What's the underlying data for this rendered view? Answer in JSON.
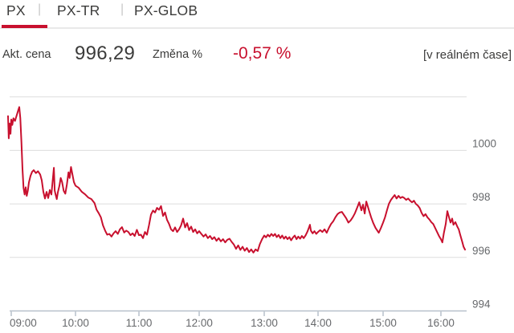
{
  "tabs": {
    "separator": "|",
    "items": [
      {
        "label": "PX",
        "active": true
      },
      {
        "label": "PX-TR",
        "active": false
      },
      {
        "label": "PX-GLOB",
        "active": false
      }
    ]
  },
  "quote": {
    "price_label": "Akt. cena",
    "price": "996,29",
    "change_label": "Změna %",
    "change": "-0,57 %",
    "realtime_note": "[v reálném čase]"
  },
  "colors": {
    "accent": "#c8102e",
    "text": "#3b3b3a",
    "axis_labels": "#67696c",
    "gridline": "#dddddd",
    "axis_line": "#b7c0ca"
  },
  "chart_data": {
    "type": "line",
    "title": "PX index intraday",
    "xlabel": "",
    "ylabel": "",
    "legend": "none",
    "grid": "horizontal",
    "x_axis": {
      "tick_labels": [
        "09:00",
        "10:00",
        "11:00",
        "12:00",
        "13:00",
        "14:00",
        "15:00",
        "16:00"
      ],
      "tick_minutes": [
        0,
        60,
        120,
        180,
        240,
        300,
        360,
        420
      ]
    },
    "y_axis": {
      "side": "right",
      "tick_labels": [
        "1000",
        "998",
        "996",
        "994"
      ],
      "tick_values": [
        1000,
        998,
        996,
        994
      ],
      "gridline_values": [
        1002,
        1000,
        998,
        996,
        994
      ],
      "ylim": [
        993.3,
        1002.8
      ]
    },
    "series": [
      {
        "name": "PX",
        "color": "#c8102e",
        "points": [
          [
            -3,
            1001.28
          ],
          [
            -2.3,
            1000.45
          ],
          [
            -1.5,
            1001.0
          ],
          [
            -0.7,
            1000.62
          ],
          [
            0,
            1001.15
          ],
          [
            1,
            1000.95
          ],
          [
            2,
            1001.2
          ],
          [
            3.5,
            1001.1
          ],
          [
            5,
            1001.3
          ],
          [
            6.5,
            1001.5
          ],
          [
            7.5,
            1001.62
          ],
          [
            8.5,
            1001.2
          ],
          [
            9.5,
            1000.3
          ],
          [
            10.5,
            999.3
          ],
          [
            11.5,
            998.6
          ],
          [
            12.5,
            998.35
          ],
          [
            13.5,
            998.62
          ],
          [
            14.5,
            998.3
          ],
          [
            15.5,
            998.5
          ],
          [
            16.5,
            998.8
          ],
          [
            18,
            999.05
          ],
          [
            19.5,
            999.2
          ],
          [
            21,
            999.26
          ],
          [
            23,
            999.15
          ],
          [
            25,
            999.22
          ],
          [
            27,
            999.1
          ],
          [
            28.5,
            998.88
          ],
          [
            30,
            998.45
          ],
          [
            31.5,
            998.2
          ],
          [
            33,
            998.45
          ],
          [
            34.5,
            998.22
          ],
          [
            36,
            998.52
          ],
          [
            37.5,
            998.35
          ],
          [
            39,
            999.0
          ],
          [
            39.8,
            999.35
          ],
          [
            40.6,
            998.5
          ],
          [
            41.5,
            998.34
          ],
          [
            42.5,
            998.18
          ],
          [
            43.5,
            998.43
          ],
          [
            45,
            998.68
          ],
          [
            46.2,
            998.97
          ],
          [
            47.5,
            998.82
          ],
          [
            49,
            998.49
          ],
          [
            50.5,
            998.38
          ],
          [
            52,
            998.73
          ],
          [
            53.5,
            999.18
          ],
          [
            54.5,
            998.97
          ],
          [
            55.8,
            999.38
          ],
          [
            57,
            999.13
          ],
          [
            58.5,
            998.82
          ],
          [
            60,
            998.68
          ],
          [
            63,
            998.6
          ],
          [
            66,
            998.45
          ],
          [
            69,
            998.36
          ],
          [
            72,
            998.24
          ],
          [
            75,
            998.18
          ],
          [
            78,
            998.03
          ],
          [
            80,
            997.78
          ],
          [
            82,
            997.65
          ],
          [
            84,
            997.5
          ],
          [
            86,
            997.2
          ],
          [
            88,
            997.0
          ],
          [
            90,
            996.85
          ],
          [
            92,
            996.88
          ],
          [
            94,
            996.78
          ],
          [
            96,
            996.9
          ],
          [
            98,
            996.98
          ],
          [
            100,
            996.88
          ],
          [
            102,
            997.05
          ],
          [
            104,
            997.13
          ],
          [
            106,
            996.93
          ],
          [
            108,
            997.0
          ],
          [
            110,
            996.95
          ],
          [
            112,
            996.83
          ],
          [
            114,
            996.9
          ],
          [
            116,
            996.8
          ],
          [
            118,
            997.03
          ],
          [
            120,
            996.83
          ],
          [
            122,
            996.85
          ],
          [
            124,
            996.72
          ],
          [
            126,
            996.95
          ],
          [
            128,
            996.85
          ],
          [
            130,
            997.2
          ],
          [
            132,
            997.6
          ],
          [
            134,
            997.75
          ],
          [
            136,
            997.68
          ],
          [
            138,
            997.85
          ],
          [
            140,
            997.78
          ],
          [
            142,
            997.92
          ],
          [
            144,
            997.55
          ],
          [
            146,
            997.68
          ],
          [
            148,
            997.4
          ],
          [
            150,
            997.25
          ],
          [
            152,
            997.05
          ],
          [
            154,
            996.98
          ],
          [
            156,
            997.12
          ],
          [
            158,
            996.95
          ],
          [
            160,
            997.05
          ],
          [
            162,
            997.2
          ],
          [
            164,
            997.45
          ],
          [
            166,
            997.12
          ],
          [
            168,
            997.28
          ],
          [
            170,
            997.02
          ],
          [
            172,
            997.15
          ],
          [
            174,
            996.95
          ],
          [
            176,
            997.05
          ],
          [
            178,
            996.9
          ],
          [
            180,
            996.98
          ],
          [
            182,
            996.88
          ],
          [
            184,
            996.78
          ],
          [
            186,
            996.86
          ],
          [
            188,
            996.72
          ],
          [
            190,
            996.8
          ],
          [
            192,
            996.68
          ],
          [
            194,
            996.76
          ],
          [
            196,
            996.62
          ],
          [
            198,
            996.72
          ],
          [
            200,
            996.6
          ],
          [
            202,
            996.68
          ],
          [
            204,
            996.56
          ],
          [
            206,
            996.66
          ],
          [
            208,
            996.7
          ],
          [
            210,
            996.58
          ],
          [
            212,
            996.48
          ],
          [
            214,
            996.32
          ],
          [
            216,
            996.45
          ],
          [
            218,
            996.28
          ],
          [
            220,
            996.4
          ],
          [
            222,
            996.25
          ],
          [
            224,
            996.35
          ],
          [
            226,
            996.2
          ],
          [
            228,
            996.3
          ],
          [
            230,
            996.18
          ],
          [
            232,
            996.3
          ],
          [
            234,
            996.24
          ],
          [
            236,
            996.5
          ],
          [
            238,
            996.68
          ],
          [
            240,
            996.82
          ],
          [
            242,
            996.75
          ],
          [
            244,
            996.85
          ],
          [
            246,
            996.78
          ],
          [
            248,
            996.88
          ],
          [
            250,
            996.8
          ],
          [
            252,
            996.88
          ],
          [
            254,
            996.76
          ],
          [
            256,
            996.84
          ],
          [
            258,
            996.72
          ],
          [
            260,
            996.82
          ],
          [
            262,
            996.7
          ],
          [
            264,
            996.78
          ],
          [
            266,
            996.68
          ],
          [
            268,
            996.76
          ],
          [
            270,
            996.64
          ],
          [
            272,
            996.74
          ],
          [
            274,
            996.82
          ],
          [
            276,
            996.68
          ],
          [
            278,
            996.78
          ],
          [
            280,
            996.7
          ],
          [
            282,
            996.8
          ],
          [
            284,
            996.72
          ],
          [
            286,
            996.82
          ],
          [
            288,
            996.95
          ],
          [
            290,
            997.12
          ],
          [
            291,
            997.22
          ],
          [
            292,
            997.0
          ],
          [
            294,
            996.9
          ],
          [
            296,
            996.98
          ],
          [
            298,
            996.88
          ],
          [
            300,
            996.95
          ],
          [
            302,
            997.02
          ],
          [
            304,
            996.95
          ],
          [
            306,
            997.05
          ],
          [
            308,
            996.92
          ],
          [
            310,
            997.1
          ],
          [
            312,
            997.25
          ],
          [
            314,
            997.35
          ],
          [
            316,
            997.5
          ],
          [
            318,
            997.62
          ],
          [
            320,
            997.68
          ],
          [
            322,
            997.7
          ],
          [
            324,
            997.58
          ],
          [
            326,
            997.46
          ],
          [
            328,
            997.3
          ],
          [
            330,
            997.38
          ],
          [
            332,
            997.5
          ],
          [
            334,
            997.65
          ],
          [
            336,
            997.85
          ],
          [
            338,
            998.06
          ],
          [
            340,
            997.76
          ],
          [
            341.5,
            997.97
          ],
          [
            343,
            997.64
          ],
          [
            344.5,
            998.09
          ],
          [
            347,
            997.76
          ],
          [
            349,
            997.5
          ],
          [
            351,
            997.28
          ],
          [
            353,
            997.1
          ],
          [
            356,
            996.92
          ],
          [
            358,
            997.1
          ],
          [
            360,
            997.3
          ],
          [
            362,
            997.5
          ],
          [
            364,
            997.76
          ],
          [
            366,
            998.0
          ],
          [
            368,
            998.14
          ],
          [
            370,
            998.24
          ],
          [
            372,
            998.33
          ],
          [
            374,
            998.2
          ],
          [
            376,
            998.3
          ],
          [
            378,
            998.22
          ],
          [
            380,
            998.26
          ],
          [
            382,
            998.22
          ],
          [
            384,
            998.15
          ],
          [
            386,
            998.2
          ],
          [
            388,
            998.12
          ],
          [
            390,
            998.06
          ],
          [
            392,
            998.12
          ],
          [
            394,
            998.0
          ],
          [
            396,
            997.94
          ],
          [
            398,
            997.84
          ],
          [
            400,
            997.66
          ],
          [
            402,
            997.54
          ],
          [
            404,
            997.62
          ],
          [
            406,
            997.5
          ],
          [
            408,
            997.42
          ],
          [
            410,
            997.32
          ],
          [
            412,
            997.25
          ],
          [
            414,
            997.1
          ],
          [
            416,
            996.95
          ],
          [
            418,
            996.8
          ],
          [
            420,
            996.68
          ],
          [
            421.5,
            996.56
          ],
          [
            423,
            996.9
          ],
          [
            425,
            997.25
          ],
          [
            426.7,
            997.73
          ],
          [
            428,
            997.55
          ],
          [
            430,
            997.3
          ],
          [
            431.7,
            997.45
          ],
          [
            433,
            997.22
          ],
          [
            435,
            997.32
          ],
          [
            437,
            997.15
          ],
          [
            438.5,
            997.05
          ],
          [
            440,
            996.85
          ],
          [
            442,
            996.6
          ],
          [
            443.5,
            996.4
          ],
          [
            445,
            996.29
          ]
        ]
      }
    ]
  }
}
